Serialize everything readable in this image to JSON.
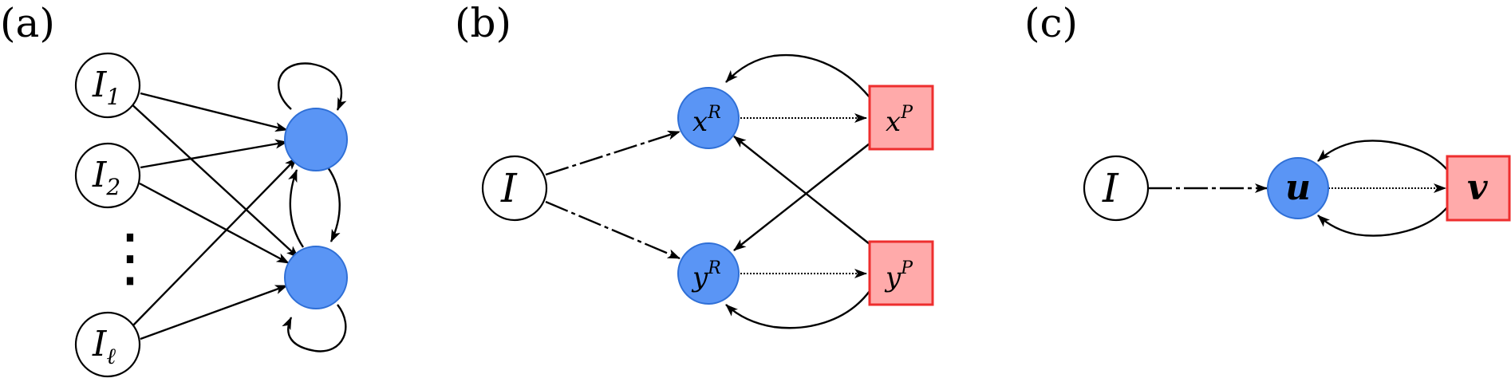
{
  "colors": {
    "input_node_fill": "#ffffff",
    "input_node_stroke": "#000000",
    "blue_node_fill": "#5a95f5",
    "blue_node_stroke": "#2f6fd6",
    "red_node_fill": "#ffaaaa",
    "red_node_stroke": "#ee2e2e",
    "edge": "#000000"
  },
  "panels": {
    "a": {
      "label": "(a)",
      "inputs": [
        {
          "base": "I",
          "sub": "1"
        },
        {
          "base": "I",
          "sub": "2"
        },
        {
          "base": "I",
          "sub": "ℓ"
        }
      ],
      "ellipsis": "⋮"
    },
    "b": {
      "label": "(b)",
      "input": "I",
      "xR": {
        "base": "x",
        "sup": "R"
      },
      "xP": {
        "base": "x",
        "sup": "P"
      },
      "yR": {
        "base": "y",
        "sup": "R"
      },
      "yP": {
        "base": "y",
        "sup": "P"
      }
    },
    "c": {
      "label": "(c)",
      "input": "I",
      "u": "u",
      "v": "v"
    }
  }
}
